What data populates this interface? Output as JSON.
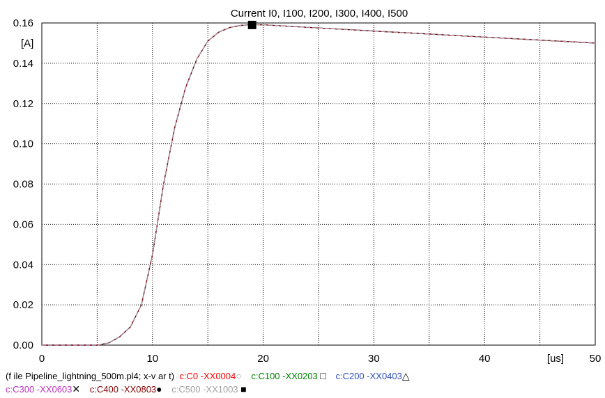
{
  "chart_data": {
    "type": "line",
    "title": "Current I0, I100, I200, I300, I400, I500",
    "ylabel": "[A]",
    "xlabel": "[us]",
    "xlim": [
      0,
      50
    ],
    "ylim": [
      0,
      0.16
    ],
    "x_ticks": [
      "0",
      "10",
      "20",
      "30",
      "40",
      "50"
    ],
    "y_ticks": [
      "0.00",
      "0.02",
      "0.04",
      "0.06",
      "0.08",
      "0.10",
      "0.12",
      "0.14",
      "0.16"
    ],
    "grid": true,
    "series": [
      {
        "name": "c:C0 -XX0004",
        "color": "#ff0000",
        "marker": "circle",
        "x": [
          0,
          5,
          6,
          7,
          8,
          9,
          10,
          11,
          12,
          13,
          14,
          15,
          16,
          17,
          18,
          19,
          20,
          25,
          30,
          35,
          40,
          45,
          50
        ],
        "y": [
          0,
          0,
          0.001,
          0.004,
          0.009,
          0.02,
          0.045,
          0.08,
          0.108,
          0.128,
          0.142,
          0.151,
          0.1555,
          0.1578,
          0.1588,
          0.1592,
          0.1591,
          0.1575,
          0.156,
          0.1545,
          0.153,
          0.1515,
          0.15
        ]
      },
      {
        "name": "c:C100 -XX0203",
        "color": "#008000",
        "marker": "square-open",
        "x": [
          0,
          5,
          6,
          7,
          8,
          9,
          10,
          11,
          12,
          13,
          14,
          15,
          16,
          17,
          18,
          19,
          20,
          25,
          30,
          35,
          40,
          45,
          50
        ],
        "y": [
          0,
          0,
          0.001,
          0.004,
          0.009,
          0.02,
          0.045,
          0.08,
          0.108,
          0.128,
          0.142,
          0.151,
          0.1555,
          0.1578,
          0.1588,
          0.1592,
          0.1591,
          0.1575,
          0.156,
          0.1545,
          0.153,
          0.1515,
          0.15
        ]
      },
      {
        "name": "c:C200 -XX0403",
        "color": "#3050c0",
        "marker": "triangle-open",
        "x": [
          0,
          5,
          6,
          7,
          8,
          9,
          10,
          11,
          12,
          13,
          14,
          15,
          16,
          17,
          18,
          19,
          20,
          25,
          30,
          35,
          40,
          45,
          50
        ],
        "y": [
          0,
          0,
          0.001,
          0.004,
          0.009,
          0.02,
          0.045,
          0.08,
          0.108,
          0.128,
          0.142,
          0.151,
          0.1555,
          0.1578,
          0.1588,
          0.1592,
          0.1591,
          0.1575,
          0.156,
          0.1545,
          0.153,
          0.1515,
          0.15
        ]
      },
      {
        "name": "c:C300 -XX0603",
        "color": "#c030c0",
        "marker": "x",
        "x": [
          0,
          5,
          6,
          7,
          8,
          9,
          10,
          11,
          12,
          13,
          14,
          15,
          16,
          17,
          18,
          19,
          20,
          25,
          30,
          35,
          40,
          45,
          50
        ],
        "y": [
          0,
          0,
          0.001,
          0.004,
          0.009,
          0.02,
          0.045,
          0.08,
          0.108,
          0.128,
          0.142,
          0.151,
          0.1555,
          0.1578,
          0.1588,
          0.1592,
          0.1591,
          0.1575,
          0.156,
          0.1545,
          0.153,
          0.1515,
          0.15
        ]
      },
      {
        "name": "c:C400 -XX0803",
        "color": "#800000",
        "marker": "circle-filled",
        "x": [
          0,
          5,
          6,
          7,
          8,
          9,
          10,
          11,
          12,
          13,
          14,
          15,
          16,
          17,
          18,
          19,
          20,
          25,
          30,
          35,
          40,
          45,
          50
        ],
        "y": [
          0,
          0,
          0.001,
          0.004,
          0.009,
          0.02,
          0.045,
          0.08,
          0.108,
          0.128,
          0.142,
          0.151,
          0.1555,
          0.1578,
          0.1588,
          0.1592,
          0.1591,
          0.1575,
          0.156,
          0.1545,
          0.153,
          0.1515,
          0.15
        ]
      },
      {
        "name": "c:C500 -XX1003",
        "color": "#a0a0a0",
        "marker": "square-filled",
        "x": [
          0,
          5,
          6,
          7,
          8,
          9,
          10,
          11,
          12,
          13,
          14,
          15,
          16,
          17,
          18,
          19,
          20,
          25,
          30,
          35,
          40,
          45,
          50
        ],
        "y": [
          0,
          0,
          0.001,
          0.004,
          0.009,
          0.02,
          0.045,
          0.08,
          0.108,
          0.128,
          0.142,
          0.151,
          0.1555,
          0.1578,
          0.1588,
          0.1592,
          0.1591,
          0.1575,
          0.156,
          0.1545,
          0.153,
          0.1515,
          0.15
        ]
      }
    ],
    "peak_marker": {
      "x": 19,
      "y": 0.159
    }
  },
  "legend": {
    "file_info": "(f ile  Pipeline_lightning_500m.pl4;  x-v ar  t)",
    "items": [
      {
        "label": "c:C0    -XX0004",
        "color": "#ff0000",
        "symbol": "○"
      },
      {
        "label": "c:C100  -XX0203",
        "color": "#008000",
        "symbol": "□"
      },
      {
        "label": "c:C200  -XX0403",
        "color": "#3050c0",
        "symbol": "△"
      },
      {
        "label": "c:C300  -XX0603",
        "color": "#c030c0",
        "symbol": "✕"
      },
      {
        "label": "c:C400  -XX0803",
        "color": "#800000",
        "symbol": "●"
      },
      {
        "label": "c:C500  -XX1003",
        "color": "#a0a0a0",
        "symbol": "■"
      }
    ]
  }
}
